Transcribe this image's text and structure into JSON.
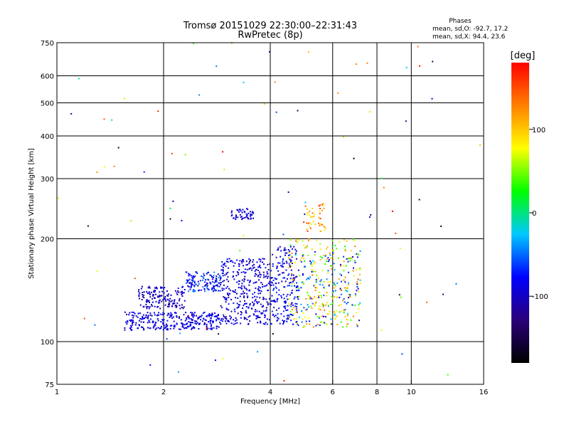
{
  "chart_data": {
    "type": "scatter",
    "title": "Tromsø 20151029 22:30:00–22:31:43",
    "subtitle": "RwPretec (8p)",
    "xlabel": "Frequency [MHz]",
    "ylabel": "Stationary phase Virtual Height [km]",
    "x_scale": "log",
    "y_scale": "log",
    "xlim": [
      1,
      16
    ],
    "ylim": [
      75,
      750
    ],
    "x_ticks": [
      1,
      2,
      4,
      6,
      8,
      10,
      16
    ],
    "y_ticks": [
      75,
      100,
      200,
      300,
      400,
      500,
      600,
      750
    ],
    "x_grid": [
      2,
      4,
      6,
      8,
      10
    ],
    "y_grid": [
      100,
      200,
      300,
      400,
      500,
      600
    ],
    "stats": {
      "heading": "Phases",
      "line1": "mean, sd,O: -92.7, 17.2",
      "line2": "mean, sd,X:  94.4, 23.6"
    },
    "colorbar": {
      "unit": "[deg]",
      "ticks": [
        100,
        0,
        -100
      ],
      "range": [
        -180,
        180
      ],
      "colormap": [
        "#000000",
        "#2a007a",
        "#0000ff",
        "#00c8ff",
        "#00ff00",
        "#ffff00",
        "#ff8000",
        "#ff0000"
      ]
    },
    "clusters": [
      {
        "f": [
          1.55,
          2.9
        ],
        "h": [
          108,
          122
        ],
        "phase": [
          -110,
          -70
        ],
        "n": 300
      },
      {
        "f": [
          1.7,
          2.3
        ],
        "h": [
          125,
          145
        ],
        "phase": [
          -120,
          -80
        ],
        "n": 150
      },
      {
        "f": [
          2.3,
          2.9
        ],
        "h": [
          140,
          160
        ],
        "phase": [
          -110,
          -40
        ],
        "n": 130
      },
      {
        "f": [
          2.9,
          4.0
        ],
        "h": [
          112,
          175
        ],
        "phase": [
          -120,
          -70
        ],
        "n": 350
      },
      {
        "f": [
          3.1,
          3.6
        ],
        "h": [
          228,
          245
        ],
        "phase": [
          -110,
          -80
        ],
        "n": 50
      },
      {
        "f": [
          4.0,
          4.8
        ],
        "h": [
          112,
          190
        ],
        "phase": [
          -110,
          -60
        ],
        "n": 200
      },
      {
        "f": [
          4.5,
          7.2
        ],
        "h": [
          110,
          200
        ],
        "phase": [
          20,
          140
        ],
        "n": 260
      },
      {
        "f": [
          4.5,
          7.2
        ],
        "h": [
          110,
          185
        ],
        "phase": [
          -110,
          -20
        ],
        "n": 120
      },
      {
        "f": [
          5.0,
          5.8
        ],
        "h": [
          210,
          255
        ],
        "phase": [
          60,
          160
        ],
        "n": 45
      },
      {
        "f": [
          1.0,
          16.0
        ],
        "h": [
          75,
          750
        ],
        "phase": [
          -180,
          180
        ],
        "n": 90
      }
    ]
  }
}
